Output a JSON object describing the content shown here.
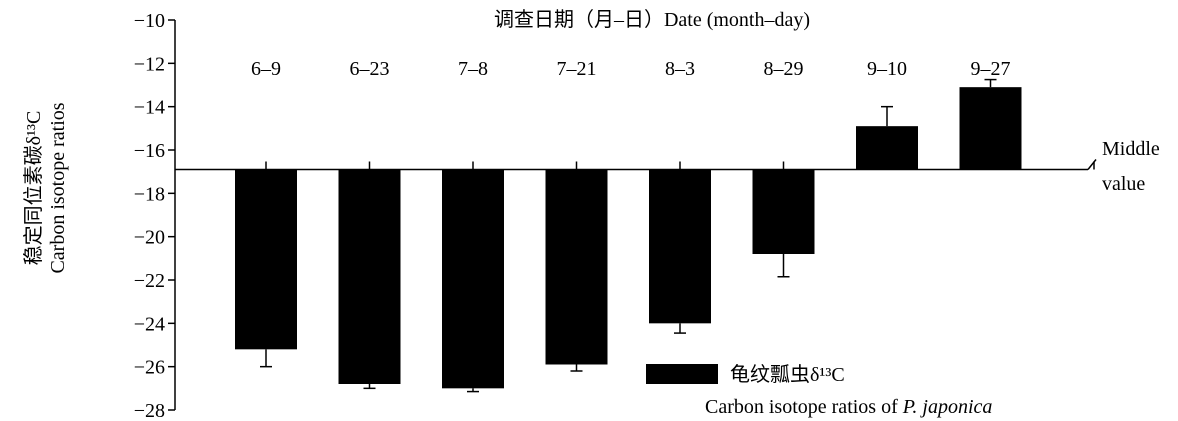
{
  "chart_data": {
    "type": "bar",
    "title": "调查日期（月–日）Date (month–day)",
    "ylabel_cn": "稳定同位素碳δ¹³C",
    "ylabel_en": "Carbon isotope ratios",
    "baseline_label_1": "Middle",
    "baseline_label_2": "value",
    "baseline": -16.9,
    "ylim": [
      -28,
      -10
    ],
    "yticks": [
      -10,
      -12,
      -14,
      -16,
      -18,
      -20,
      -22,
      -24,
      -26,
      -28
    ],
    "ytick_labels": [
      "−10",
      "−12",
      "−14",
      "−16",
      "−18",
      "−20",
      "−22",
      "−24",
      "−26",
      "−28"
    ],
    "categories": [
      "6–9",
      "6–23",
      "7–8",
      "7–21",
      "8–3",
      "8–29",
      "9–10",
      "9–27"
    ],
    "series": [
      {
        "name": "龟纹瓢虫δ¹³C",
        "name_en": "Carbon isotope ratios of P. japonica",
        "color": "#000000",
        "values": [
          -25.2,
          -26.8,
          -27.0,
          -25.9,
          -24.0,
          -20.8,
          -14.9,
          -13.1
        ],
        "errors": [
          0.8,
          0.2,
          0.15,
          0.3,
          0.45,
          1.05,
          0.9,
          0.35
        ]
      }
    ],
    "legend": {
      "label_cn": "龟纹瓢虫δ¹³C",
      "label_en_prefix": "Carbon isotope ratios of ",
      "label_en_species": "P. japonica",
      "placement": "bottom-right"
    },
    "grid": false
  }
}
